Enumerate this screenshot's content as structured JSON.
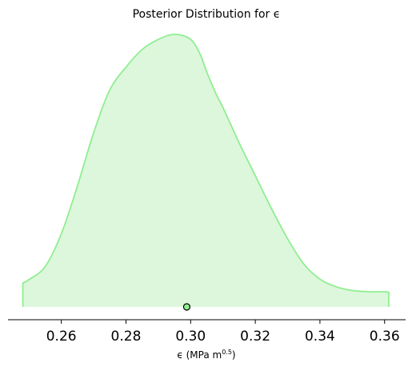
{
  "chart_data": {
    "type": "area",
    "title": "Posterior Distribution for ϵ",
    "xlabel_main": "ϵ (MPa m",
    "xlabel_sup": "0.5",
    "xlabel_close": ")",
    "xlim": [
      0.2435,
      0.3665
    ],
    "ylim": [
      0,
      1.07
    ],
    "xticks": [
      0.26,
      0.28,
      0.3,
      0.32,
      0.34,
      0.36
    ],
    "xtick_labels": [
      "0.26",
      "0.28",
      "0.30",
      "0.32",
      "0.34",
      "0.36"
    ],
    "grid": false,
    "colors": {
      "line": "#90ee90",
      "fill": "#dcf7dc",
      "point_fill": "#90ee90",
      "point_edge": "#000000"
    },
    "density": {
      "x": [
        0.2481,
        0.25,
        0.255,
        0.26,
        0.265,
        0.27,
        0.275,
        0.28,
        0.285,
        0.29,
        0.295,
        0.3,
        0.303,
        0.305,
        0.308,
        0.31,
        0.315,
        0.32,
        0.325,
        0.33,
        0.335,
        0.34,
        0.345,
        0.35,
        0.355,
        0.36,
        0.3613
      ],
      "y": [
        0.095,
        0.108,
        0.16,
        0.29,
        0.48,
        0.69,
        0.86,
        0.95,
        1.02,
        1.06,
        1.08,
        1.06,
        1.0,
        0.93,
        0.84,
        0.79,
        0.65,
        0.52,
        0.39,
        0.27,
        0.17,
        0.11,
        0.08,
        0.065,
        0.06,
        0.06,
        0.058
      ]
    },
    "point_estimate": {
      "x": 0.2988,
      "y": 0
    }
  }
}
